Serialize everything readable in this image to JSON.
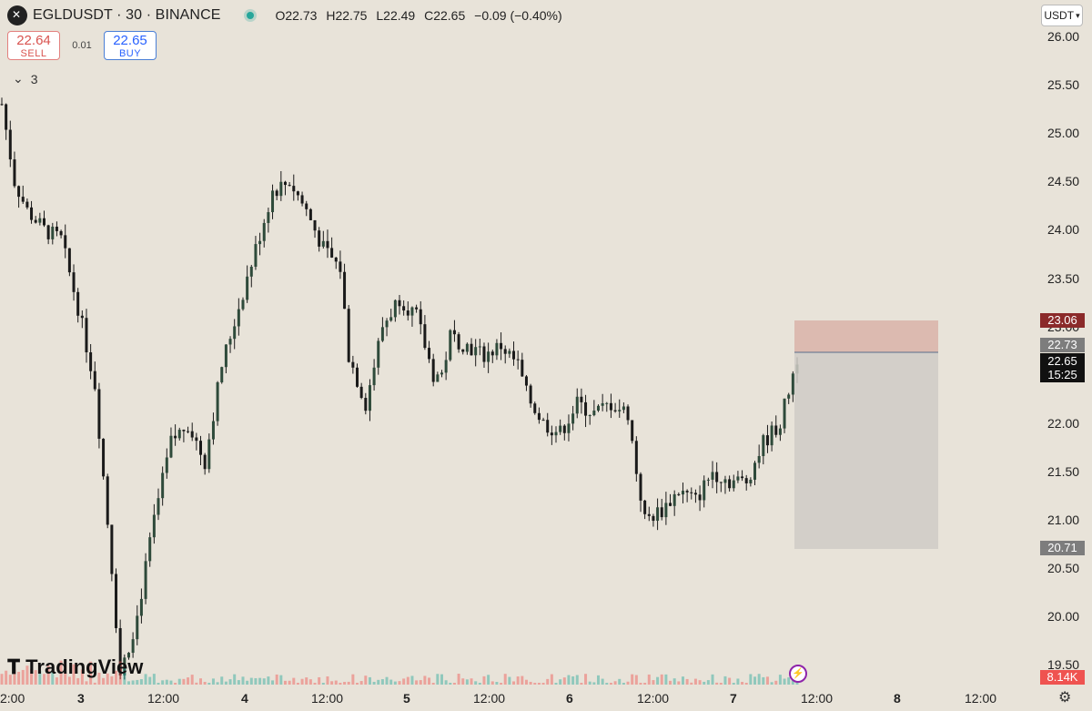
{
  "header": {
    "title": "EGLDUSDT · 30 · BINANCE",
    "open": "O22.73",
    "high": "H22.75",
    "low": "L22.49",
    "close": "C22.65",
    "change": "−0.09 (−0.40%)"
  },
  "trade": {
    "sell_price": "22.64",
    "sell_label": "SELL",
    "spread": "0.01",
    "buy_price": "22.65",
    "buy_label": "BUY"
  },
  "indicators": {
    "collapsed_count": "3"
  },
  "currency": "USDT",
  "price_axis": [
    "26.00",
    "25.50",
    "25.00",
    "24.50",
    "24.00",
    "23.50",
    "23.00",
    "22.50",
    "22.00",
    "21.50",
    "21.00",
    "20.50",
    "20.00",
    "19.50"
  ],
  "time_axis": [
    "2:00",
    "3",
    "12:00",
    "4",
    "12:00",
    "5",
    "12:00",
    "6",
    "12:00",
    "7",
    "12:00",
    "8",
    "12:00"
  ],
  "tags": {
    "stop": "23.06",
    "entry": "22.73",
    "last": "22.65",
    "countdown": "15:25",
    "target": "20.71",
    "volume": "8.14K"
  },
  "branding": {
    "logo": "TradingView"
  },
  "colors": {
    "up": "#26a69a",
    "down": "#ef5350",
    "candle": "#1a1a1a",
    "stop_zone": "#d9b3a8",
    "target_zone": "#cfcbc5"
  },
  "chart_data": {
    "type": "candlestick",
    "symbol": "EGLDUSDT",
    "interval": "30",
    "ylim": [
      19.35,
      26.2
    ],
    "close_path": [
      [
        0,
        25.3
      ],
      [
        3,
        24.5
      ],
      [
        6,
        24.2
      ],
      [
        10,
        24.0
      ],
      [
        14,
        23.9
      ],
      [
        18,
        23.2
      ],
      [
        22,
        22.4
      ],
      [
        26,
        20.5
      ],
      [
        28,
        19.4
      ],
      [
        32,
        20.0
      ],
      [
        36,
        21.0
      ],
      [
        40,
        21.8
      ],
      [
        44,
        22.0
      ],
      [
        48,
        21.6
      ],
      [
        52,
        22.6
      ],
      [
        56,
        23.2
      ],
      [
        60,
        23.8
      ],
      [
        64,
        24.4
      ],
      [
        68,
        24.5
      ],
      [
        72,
        24.2
      ],
      [
        76,
        23.8
      ],
      [
        80,
        23.6
      ],
      [
        82,
        22.7
      ],
      [
        86,
        22.2
      ],
      [
        90,
        23.0
      ],
      [
        94,
        23.3
      ],
      [
        98,
        23.1
      ],
      [
        102,
        22.5
      ],
      [
        104,
        22.5
      ],
      [
        106,
        22.9
      ],
      [
        110,
        22.8
      ],
      [
        114,
        22.7
      ],
      [
        118,
        22.8
      ],
      [
        122,
        22.6
      ],
      [
        124,
        22.3
      ],
      [
        128,
        22.0
      ],
      [
        132,
        21.9
      ],
      [
        136,
        22.2
      ],
      [
        140,
        22.1
      ],
      [
        144,
        22.2
      ],
      [
        148,
        22.1
      ],
      [
        150,
        21.5
      ],
      [
        152,
        21.0
      ],
      [
        156,
        21.1
      ],
      [
        160,
        21.3
      ],
      [
        164,
        21.2
      ],
      [
        168,
        21.5
      ],
      [
        172,
        21.4
      ],
      [
        176,
        21.4
      ],
      [
        180,
        21.8
      ],
      [
        184,
        22.0
      ],
      [
        188,
        22.68
      ]
    ],
    "volume_max": 0.8
  }
}
